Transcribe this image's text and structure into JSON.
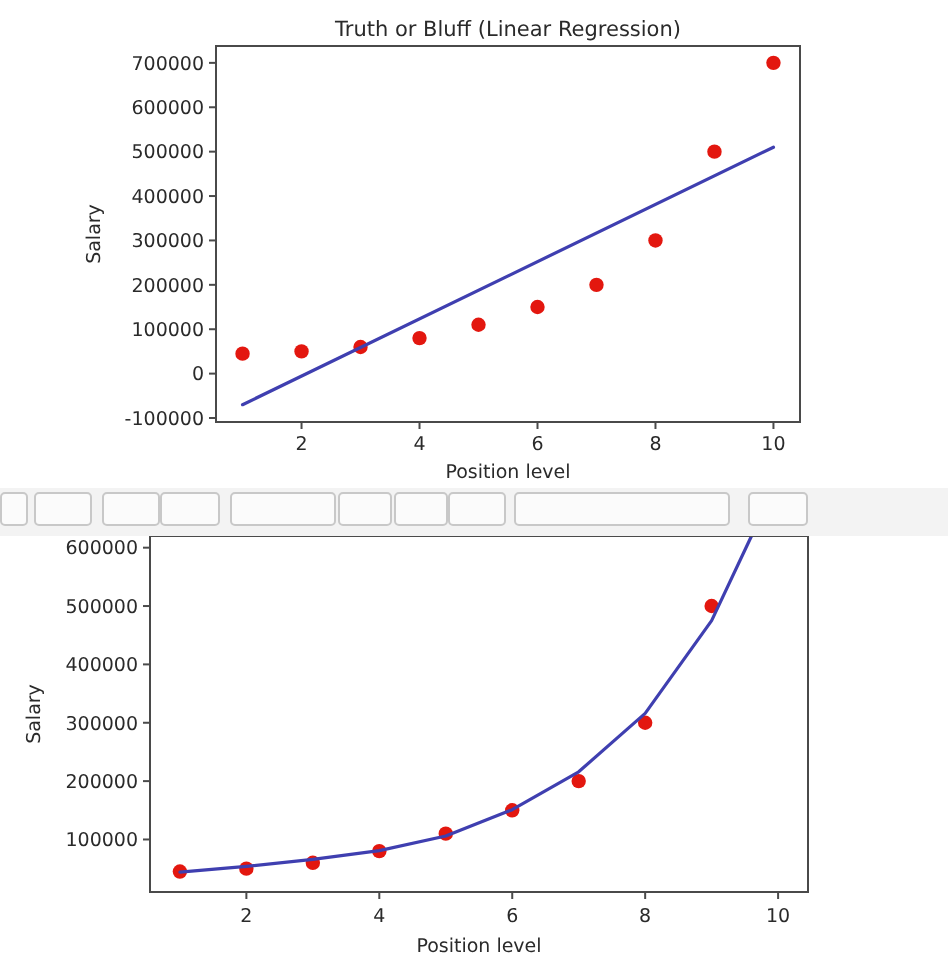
{
  "chart_data": [
    {
      "type": "scatter",
      "title": "Truth or Bluff (Linear Regression)",
      "xlabel": "Position level",
      "ylabel": "Salary",
      "xlim": [
        0.55,
        10.45
      ],
      "xticks": [
        2,
        4,
        6,
        8,
        10
      ],
      "ylim": [
        -109000,
        738000
      ],
      "yticks": [
        -100000,
        0,
        100000,
        200000,
        300000,
        400000,
        500000,
        600000,
        700000
      ],
      "series": [
        {
          "type": "scatter",
          "marker": "circle",
          "color": "#e3170f",
          "x": [
            1,
            2,
            3,
            4,
            5,
            6,
            7,
            8,
            9,
            10
          ],
          "values": [
            45000,
            50000,
            60000,
            80000,
            110000,
            150000,
            200000,
            300000,
            500000,
            700000
          ]
        },
        {
          "type": "line",
          "color": "#3f3fb0",
          "x": [
            1,
            10
          ],
          "values": [
            -70000,
            510000
          ]
        }
      ]
    },
    {
      "type": "scatter",
      "xlabel": "Position level",
      "ylabel": "Salary",
      "xlim": [
        0.55,
        10.45
      ],
      "xticks": [
        2,
        4,
        6,
        8,
        10
      ],
      "ylim": [
        10000,
        620000
      ],
      "yticks": [
        100000,
        200000,
        300000,
        400000,
        500000,
        600000
      ],
      "series": [
        {
          "type": "scatter",
          "marker": "circle",
          "color": "#e3170f",
          "x": [
            1,
            2,
            3,
            4,
            5,
            6,
            7,
            8,
            9
          ],
          "values": [
            45000,
            50000,
            60000,
            80000,
            110000,
            150000,
            200000,
            300000,
            500000
          ]
        },
        {
          "type": "line",
          "color": "#3f3fb0",
          "x": [
            1,
            2,
            3,
            4,
            5,
            6,
            7,
            8,
            9,
            9.6
          ],
          "values": [
            44000,
            54000,
            66000,
            81000,
            106000,
            151000,
            216000,
            316000,
            475000,
            620000
          ]
        }
      ]
    }
  ]
}
